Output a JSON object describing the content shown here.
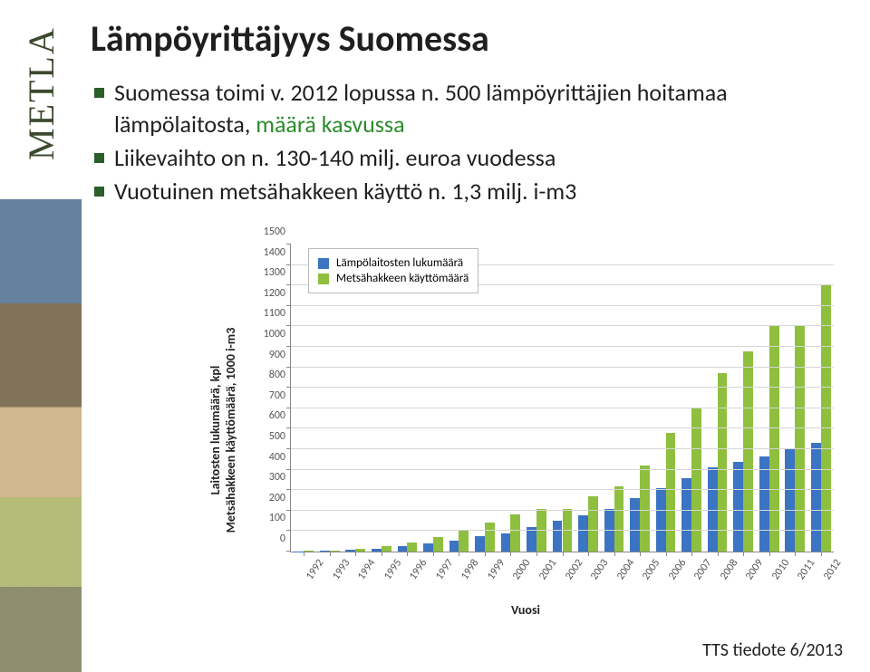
{
  "sidebar": {
    "brand": "METLA"
  },
  "title": "Lämpöyrittäjyys Suomessa",
  "bullets": [
    {
      "pre": "Suomessa toimi v. 2012 lopussa n. 500 lämpöyrittäjien hoitamaa lämpölaitosta, ",
      "hi": "määrä kasvussa",
      "post": ""
    },
    {
      "pre": "Liikevaihto on n. 130-140 milj. euroa vuodessa",
      "hi": "",
      "post": ""
    },
    {
      "pre": "Vuotuinen metsähakkeen käyttö n. 1,3 milj. i-m3",
      "hi": "",
      "post": ""
    }
  ],
  "footer": "TTS tiedote 6/2013",
  "chart": {
    "type": "bar",
    "ylim": [
      0,
      1500
    ],
    "ytick_step": 100,
    "grid_color": "#d6d6d6",
    "axis_color": "#888888",
    "background_color": "#ffffff",
    "tick_fontsize": 12,
    "label_fontsize": 14,
    "bar_width": 0.38,
    "categories": [
      "1992",
      "1993",
      "1994",
      "1995",
      "1996",
      "1997",
      "1998",
      "1999",
      "2000",
      "2001",
      "2002",
      "2003",
      "2004",
      "2005",
      "2006",
      "2007",
      "2008",
      "2009",
      "2010",
      "2011",
      "2012"
    ],
    "series": [
      {
        "name": "Lämpölaitosten lukumäärä",
        "color": "#3b74c2",
        "values": [
          2,
          4,
          8,
          15,
          25,
          40,
          55,
          75,
          90,
          120,
          150,
          175,
          210,
          260,
          310,
          360,
          410,
          440,
          465,
          500,
          530
        ]
      },
      {
        "name": "Metsähakkeen käyttömäärä",
        "color": "#8fbf3f",
        "values": [
          3,
          6,
          12,
          25,
          45,
          70,
          100,
          140,
          180,
          210,
          210,
          270,
          320,
          420,
          580,
          700,
          870,
          980,
          1100,
          1100,
          1300
        ]
      }
    ],
    "yaxis_label_line1": "Laitosten lukumäärä, kpl",
    "yaxis_label_line2": "Metsähakkeen käyttömäärä, 1000 i-m3",
    "xaxis_label": "Vuosi"
  }
}
